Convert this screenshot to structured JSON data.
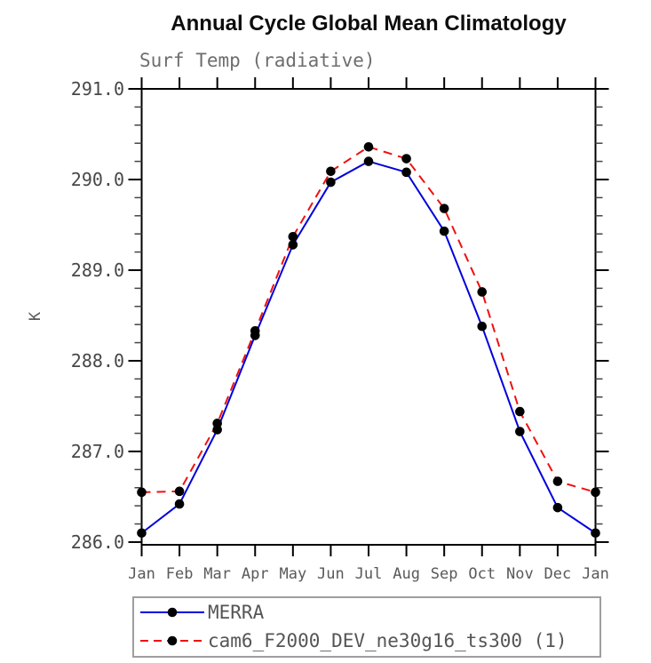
{
  "chart_data": {
    "type": "line",
    "title": "Annual Cycle Global Mean Climatology",
    "subtitle": "Surf Temp (radiative)",
    "ylabel": "K",
    "xlabel": "",
    "categories": [
      "Jan",
      "Feb",
      "Mar",
      "Apr",
      "May",
      "Jun",
      "Jul",
      "Aug",
      "Sep",
      "Oct",
      "Nov",
      "Dec",
      "Jan"
    ],
    "ylim": [
      285.97,
      291.0
    ],
    "ytick_min": 286.0,
    "ytick_max": 291.0,
    "ytick_step": 1.0,
    "ytick_minor_step": 0.2,
    "ytick_decimals": 1,
    "grid": "off",
    "legend_position": "bottom",
    "marker": "filled-circle",
    "marker_color": "#000000",
    "series": [
      {
        "name": "MERRA",
        "color": "#0000dd",
        "style": "solid",
        "values": [
          286.1,
          286.42,
          287.24,
          288.28,
          289.28,
          289.97,
          290.2,
          290.08,
          289.43,
          288.38,
          287.22,
          286.38,
          286.1
        ]
      },
      {
        "name": "cam6_F2000_DEV_ne30g16_ts300 (1)",
        "color": "#ee1111",
        "style": "dashed",
        "values": [
          286.55,
          286.56,
          287.31,
          288.33,
          289.37,
          290.09,
          290.36,
          290.23,
          289.68,
          288.76,
          287.44,
          286.67,
          286.55
        ]
      }
    ]
  }
}
